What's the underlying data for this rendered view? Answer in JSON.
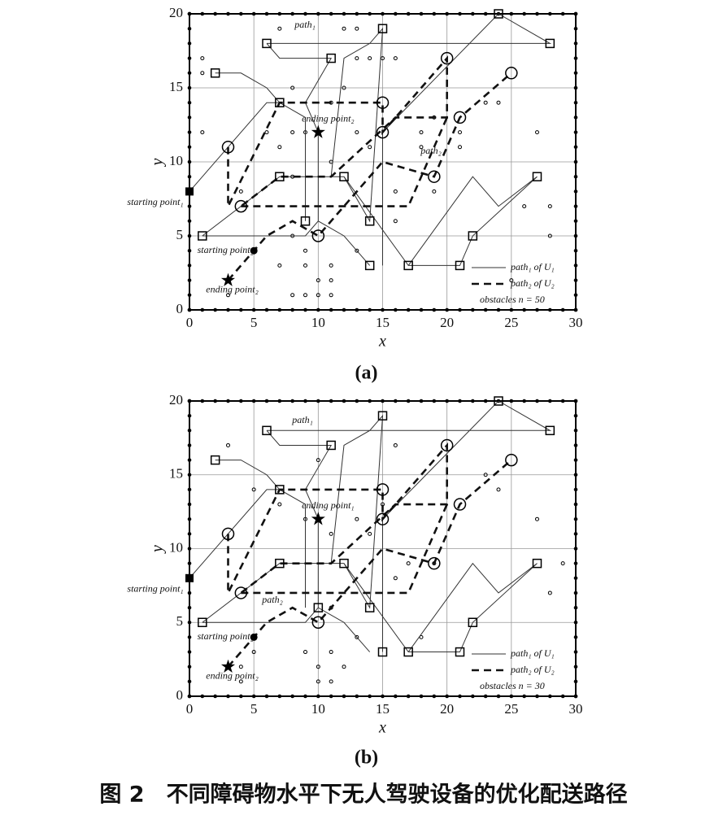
{
  "chart_data": [
    {
      "type": "path-map",
      "caption": "(a)",
      "xlabel": "x",
      "ylabel": "y",
      "xlim": [
        0,
        30
      ],
      "ylim": [
        0,
        20
      ],
      "xticks": [
        0,
        5,
        10,
        15,
        20,
        25,
        30
      ],
      "yticks": [
        0,
        5,
        10,
        15,
        20
      ],
      "grid": true,
      "series": [
        {
          "name": "path₁ of U₁",
          "style": "solid",
          "color": "#333",
          "x": [
            0,
            3,
            6,
            7,
            9,
            9,
            9,
            null,
            2,
            4,
            6,
            7,
            null,
            6,
            7,
            9,
            11,
            9,
            10,
            10,
            null,
            1,
            6,
            9,
            10,
            12,
            14,
            null,
            1,
            7,
            12,
            14,
            15,
            14,
            12,
            11,
            null,
            12,
            17,
            21,
            22,
            27,
            24,
            22,
            17,
            null,
            6,
            7,
            28,
            24,
            15,
            15
          ],
          "y": [
            8,
            11,
            14,
            14,
            13,
            10,
            6,
            null,
            16,
            16,
            15,
            14,
            null,
            18,
            17,
            17,
            17,
            14,
            12,
            6,
            null,
            5,
            5,
            5,
            6,
            5,
            3,
            null,
            5,
            9,
            9,
            6,
            19,
            18,
            17,
            9,
            null,
            9,
            3,
            3,
            5,
            9,
            7,
            9,
            3,
            null,
            18,
            18,
            18,
            20,
            12,
            3
          ]
        },
        {
          "name": "path₂ of U₂",
          "style": "dashed",
          "color": "#111",
          "x": [
            3,
            5,
            6,
            8,
            10,
            15,
            19,
            21,
            25,
            null,
            3,
            3,
            3,
            7,
            15,
            15,
            20,
            20,
            17,
            16,
            11,
            7,
            4,
            null,
            4,
            15,
            17,
            20
          ],
          "y": [
            2,
            4,
            5,
            6,
            5,
            10,
            9,
            13,
            16,
            null,
            11,
            7,
            7,
            14,
            14,
            12,
            17,
            13,
            13,
            13,
            9,
            9,
            7,
            null,
            7,
            7,
            7,
            13
          ]
        }
      ],
      "waypoints": [
        {
          "shape": "square",
          "x": [
            2,
            6,
            11,
            7,
            15,
            24,
            28,
            27,
            22,
            21,
            17,
            14,
            14,
            9,
            12,
            7,
            1
          ],
          "y": [
            16,
            18,
            17,
            14,
            19,
            20,
            18,
            9,
            5,
            3,
            3,
            6,
            3,
            6,
            9,
            9,
            5
          ]
        },
        {
          "shape": "circle",
          "x": [
            3,
            4,
            10,
            15,
            15,
            19,
            21,
            20,
            25
          ],
          "y": [
            11,
            7,
            5,
            14,
            12,
            9,
            13,
            17,
            16
          ]
        }
      ],
      "obstacles": {
        "x": [
          1,
          1,
          1,
          7,
          8,
          7,
          8,
          8,
          7,
          9,
          9,
          10,
          11,
          8,
          11,
          10,
          11,
          12,
          13,
          13,
          14,
          15,
          16,
          16,
          14,
          13,
          9,
          8,
          3,
          11,
          18,
          18,
          19,
          21,
          23,
          27,
          28,
          28,
          25,
          9,
          12,
          11,
          6,
          13,
          16,
          19,
          21,
          24,
          26,
          4
        ],
        "y": [
          17,
          16,
          12,
          19,
          15,
          11,
          9,
          5,
          3,
          3,
          1,
          1,
          1,
          1,
          2,
          2,
          3,
          19,
          19,
          17,
          17,
          17,
          17,
          8,
          11,
          12,
          12,
          12,
          1,
          10,
          12,
          11,
          13,
          11,
          14,
          12,
          7,
          5,
          2,
          4,
          15,
          14,
          12,
          4,
          6,
          8,
          12,
          14,
          7,
          8
        ]
      },
      "points": [
        {
          "label": "starting point₁",
          "shape": "filled-square",
          "x": 0,
          "y": 8
        },
        {
          "label": "starting point₂",
          "shape": "filled-circle",
          "x": 5,
          "y": 4
        },
        {
          "label": "ending point₂",
          "shape": "star",
          "x": 10,
          "y": 12
        },
        {
          "label": "ending point₂",
          "shape": "star",
          "x": 3,
          "y": 2
        }
      ],
      "annotations": [
        "path₁",
        "path₂"
      ],
      "obstacle_label": "obstacles n = 50"
    },
    {
      "type": "path-map",
      "caption": "(b)",
      "xlabel": "x",
      "ylabel": "y",
      "xlim": [
        0,
        30
      ],
      "ylim": [
        0,
        20
      ],
      "xticks": [
        0,
        5,
        10,
        15,
        20,
        25,
        30
      ],
      "yticks": [
        0,
        5,
        10,
        15,
        20
      ],
      "grid": true,
      "series": [
        {
          "name": "path₁ of U₁",
          "style": "solid",
          "color": "#333",
          "x": [
            0,
            3,
            6,
            7,
            9,
            9,
            9,
            null,
            2,
            4,
            6,
            7,
            null,
            6,
            7,
            9,
            11,
            9,
            10,
            10,
            null,
            1,
            6,
            9,
            10,
            12,
            14,
            null,
            1,
            7,
            12,
            14,
            15,
            14,
            12,
            11,
            null,
            12,
            17,
            21,
            22,
            27,
            24,
            22,
            17,
            null,
            6,
            7,
            28,
            24,
            15,
            15
          ],
          "y": [
            8,
            11,
            14,
            14,
            13,
            10,
            6,
            null,
            16,
            16,
            15,
            14,
            null,
            18,
            17,
            17,
            17,
            14,
            12,
            6,
            null,
            5,
            5,
            5,
            6,
            5,
            3,
            null,
            5,
            9,
            9,
            6,
            19,
            18,
            17,
            9,
            null,
            9,
            3,
            3,
            5,
            9,
            7,
            9,
            3,
            null,
            18,
            18,
            18,
            20,
            12,
            3
          ]
        },
        {
          "name": "path₂ of U₂",
          "style": "dashed",
          "color": "#111",
          "x": [
            3,
            5,
            6,
            8,
            10,
            15,
            19,
            21,
            25,
            null,
            3,
            3,
            3,
            7,
            15,
            15,
            20,
            20,
            17,
            16,
            11,
            7,
            4,
            null,
            4,
            15,
            17,
            20
          ],
          "y": [
            2,
            4,
            5,
            6,
            5,
            10,
            9,
            13,
            16,
            null,
            11,
            7,
            7,
            14,
            14,
            12,
            17,
            13,
            13,
            13,
            9,
            9,
            7,
            null,
            7,
            7,
            7,
            13
          ]
        }
      ],
      "waypoints": [
        {
          "shape": "square",
          "x": [
            2,
            6,
            11,
            7,
            15,
            24,
            28,
            27,
            22,
            21,
            17,
            14,
            15,
            10,
            12,
            7,
            1
          ],
          "y": [
            16,
            18,
            17,
            14,
            19,
            20,
            18,
            9,
            5,
            3,
            3,
            6,
            3,
            6,
            9,
            9,
            5
          ]
        },
        {
          "shape": "circle",
          "x": [
            3,
            4,
            10,
            15,
            15,
            19,
            21,
            20,
            25
          ],
          "y": [
            11,
            7,
            5,
            14,
            12,
            9,
            13,
            17,
            16
          ]
        }
      ],
      "obstacles": {
        "x": [
          3,
          5,
          7,
          9,
          10,
          11,
          11,
          10,
          10,
          11,
          11,
          9,
          4,
          4,
          13,
          13,
          14,
          15,
          16,
          17,
          19,
          18,
          27,
          29,
          28,
          24,
          23,
          16,
          5,
          12
        ],
        "y": [
          17,
          14,
          13,
          12,
          16,
          11,
          6,
          1,
          2,
          3,
          1,
          3,
          2,
          1,
          4,
          12,
          11,
          13,
          17,
          9,
          9,
          4,
          12,
          9,
          7,
          14,
          15,
          8,
          3,
          2
        ]
      },
      "points": [
        {
          "label": "starting point₁",
          "shape": "filled-square",
          "x": 0,
          "y": 8
        },
        {
          "label": "starting point₂",
          "shape": "filled-circle",
          "x": 5,
          "y": 4
        },
        {
          "label": "ending point₁",
          "shape": "star",
          "x": 10,
          "y": 12
        },
        {
          "label": "ending point₂",
          "shape": "star",
          "x": 3,
          "y": 2
        }
      ],
      "annotations": [
        "path₁",
        "path₂"
      ],
      "obstacle_label": "obstacles n = 30"
    }
  ],
  "figure_title": "图 2　不同障碍物水平下无人驾驶设备的优化配送路径"
}
